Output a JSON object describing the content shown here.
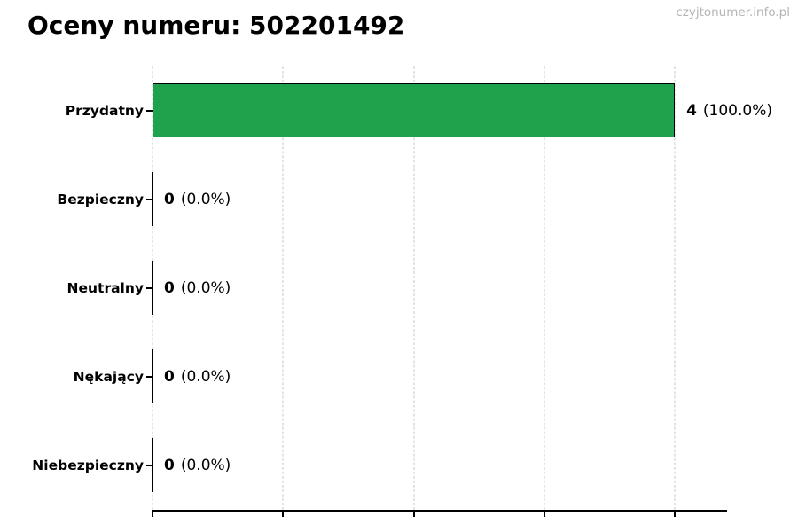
{
  "header": {
    "title": "Oceny numeru: 502201492",
    "watermark": "czyjtonumer.info.pl"
  },
  "chart_data": {
    "type": "bar",
    "orientation": "horizontal",
    "title": "Oceny numeru: 502201492",
    "categories": [
      "Przydatny",
      "Bezpieczny",
      "Neutralny",
      "Nękający",
      "Niebezpieczny"
    ],
    "values": [
      4,
      0,
      0,
      0,
      0
    ],
    "value_labels": [
      {
        "count": "4",
        "pct": "(100.0%)"
      },
      {
        "count": "0",
        "pct": "(0.0%)"
      },
      {
        "count": "0",
        "pct": "(0.0%)"
      },
      {
        "count": "0",
        "pct": "(0.0%)"
      },
      {
        "count": "0",
        "pct": "(0.0%)"
      }
    ],
    "xlim": [
      0,
      4.4
    ],
    "xticks": [
      0,
      1,
      2,
      3,
      4
    ],
    "grid": "vertical-dashed",
    "legend": "none",
    "xlabel": "",
    "ylabel": "",
    "colors": {
      "bar_fill": "#1fa24c",
      "bar_edge": "#000000",
      "gridline": "#c9c9c9",
      "axis": "#000000",
      "watermark": "#b4b4b4"
    }
  }
}
